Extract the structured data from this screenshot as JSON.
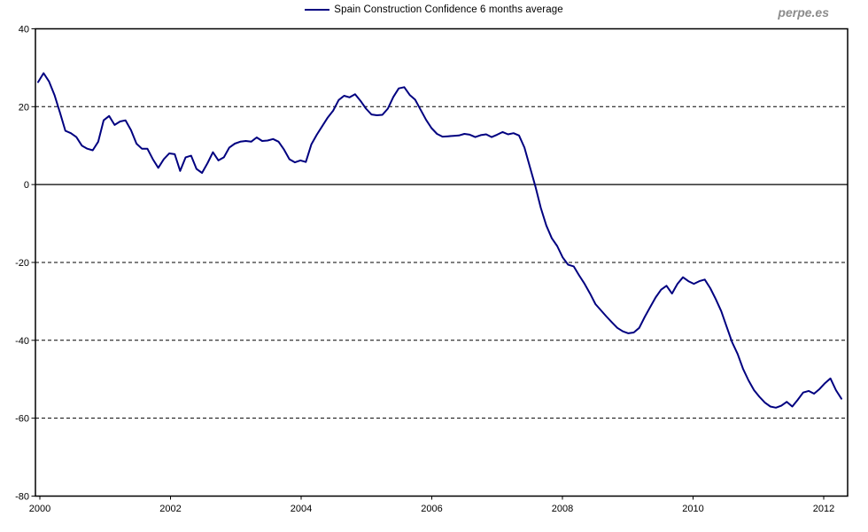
{
  "watermark": "perpe.es",
  "legend": {
    "label": "Spain Construction Confidence 6 months average",
    "line_color": "#000080"
  },
  "chart_data": {
    "type": "line",
    "title": "Spain Construction Confidence 6 months average",
    "frequency": "monthly",
    "x_start_year": 2000,
    "x_end_label": "2012-04",
    "xlabel": "",
    "ylabel": "",
    "ylim": [
      -80,
      40
    ],
    "yticks": [
      40,
      20,
      0,
      -20,
      -40,
      -60,
      -80
    ],
    "xticks": [
      2000,
      2002,
      2004,
      2006,
      2008,
      2010,
      2012
    ],
    "grid": "horizontal dashed at 20,-20,-40,-60; solid line at 0; no vertical grid",
    "legend_position": "top-center",
    "line_color": "#000080",
    "background_color": "#ffffff",
    "series": [
      {
        "name": "Spain Construction Confidence 6 months average",
        "values": [
          26.3,
          28.6,
          26.5,
          23.0,
          18.5,
          13.8,
          13.2,
          12.2,
          10.0,
          9.2,
          8.8,
          11.0,
          16.5,
          17.6,
          15.3,
          16.2,
          16.5,
          14.0,
          10.5,
          9.2,
          9.2,
          6.5,
          4.3,
          6.5,
          8.0,
          7.8,
          3.5,
          7.0,
          7.4,
          4.0,
          3.0,
          5.5,
          8.3,
          6.2,
          7.0,
          9.5,
          10.5,
          11.0,
          11.2,
          11.0,
          12.1,
          11.2,
          11.3,
          11.7,
          11.0,
          9.0,
          6.5,
          5.7,
          6.2,
          5.8,
          10.3,
          12.8,
          15.0,
          17.2,
          19.0,
          21.7,
          22.8,
          22.4,
          23.2,
          21.5,
          19.5,
          18.0,
          17.8,
          17.9,
          19.5,
          22.5,
          24.7,
          25.0,
          23.0,
          21.8,
          19.2,
          16.6,
          14.5,
          13.0,
          12.3,
          12.4,
          12.5,
          12.6,
          13.0,
          12.8,
          12.2,
          12.7,
          12.9,
          12.2,
          12.8,
          13.5,
          12.9,
          13.2,
          12.6,
          9.5,
          4.5,
          -0.5,
          -6.0,
          -10.5,
          -13.8,
          -15.8,
          -18.7,
          -20.6,
          -21.0,
          -23.3,
          -25.5,
          -28.0,
          -30.7,
          -32.3,
          -33.9,
          -35.4,
          -36.8,
          -37.7,
          -38.2,
          -38.0,
          -36.8,
          -34.0,
          -31.5,
          -29.0,
          -27.0,
          -26.0,
          -28.0,
          -25.5,
          -23.8,
          -24.8,
          -25.5,
          -24.8,
          -24.4,
          -26.6,
          -29.4,
          -32.5,
          -36.5,
          -40.5,
          -43.5,
          -47.3,
          -50.3,
          -52.8,
          -54.5,
          -56.0,
          -57.0,
          -57.3,
          -56.8,
          -55.8,
          -57.0,
          -55.3,
          -53.4,
          -53.0,
          -53.7,
          -52.5,
          -51.0,
          -49.8,
          -52.8,
          -55.0
        ]
      }
    ]
  }
}
